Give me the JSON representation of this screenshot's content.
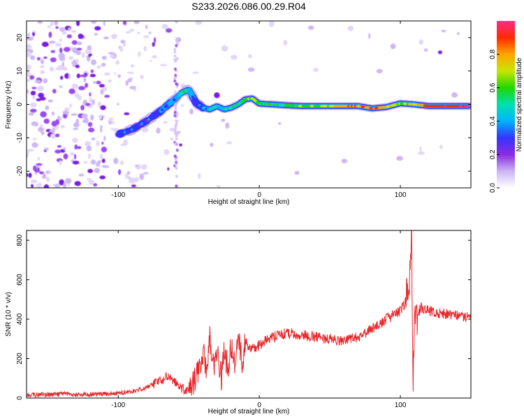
{
  "title": "S233.2026.086.00.29.R04",
  "colors": {
    "snr_line": "#e8262a",
    "axis": "#000000",
    "colormap": [
      "#ffffff",
      "#cbb5f3",
      "#8a2be2",
      "#3535ff",
      "#00b4ff",
      "#00e0b0",
      "#22d600",
      "#c8e600",
      "#ffa500",
      "#ff2a00",
      "#ff2a8a"
    ]
  },
  "chart_data": [
    {
      "type": "heatmap",
      "title": "S233.2026.086.00.29.R04",
      "xlabel": "Height of straight line (km)",
      "ylabel": "Frequency (Hz)",
      "xlim": [
        -165,
        150
      ],
      "ylim": [
        -25,
        25
      ],
      "xticks": [
        -100,
        0,
        100
      ],
      "yticks": [
        -20,
        -10,
        0,
        10,
        20
      ],
      "colorbar": {
        "label": "Normalized spectral amplitude",
        "range": [
          0,
          1
        ],
        "ticks": [
          0.0,
          0.2,
          0.4,
          0.6,
          0.8
        ]
      },
      "ridge": {
        "x": [
          -100,
          -90,
          -80,
          -70,
          -60,
          -55,
          -50,
          -45,
          -40,
          -35,
          -30,
          -25,
          -20,
          -15,
          -10,
          -5,
          0,
          10,
          20,
          30,
          40,
          50,
          60,
          70,
          80,
          90,
          100,
          110,
          120,
          130,
          140,
          148
        ],
        "freq": [
          -9,
          -7.5,
          -5,
          -2,
          1.5,
          3.5,
          4.5,
          0.5,
          -1,
          -1.5,
          -0.5,
          -1.5,
          -1,
          0,
          1.5,
          1.8,
          0.2,
          0,
          -0.3,
          -0.5,
          -0.5,
          -0.5,
          -0.5,
          -0.5,
          -1.2,
          -0.8,
          0.3,
          0,
          -0.5,
          -0.5,
          -0.5,
          -0.5
        ],
        "amplitude": [
          0.3,
          0.35,
          0.3,
          0.35,
          0.4,
          0.55,
          0.45,
          0.3,
          0.35,
          0.45,
          0.5,
          0.45,
          0.5,
          0.55,
          0.6,
          0.65,
          0.6,
          0.55,
          0.55,
          0.6,
          0.6,
          0.7,
          0.8,
          0.8,
          0.85,
          0.8,
          0.6,
          0.75,
          0.9,
          0.95,
          0.95,
          0.95
        ]
      }
    },
    {
      "type": "line",
      "xlabel": "Height of straight line (km)",
      "ylabel": "SNR (10 * v/v)",
      "xlim": [
        -165,
        150
      ],
      "ylim": [
        0,
        850
      ],
      "xticks": [
        -100,
        0,
        100
      ],
      "yticks": [
        0,
        200,
        400,
        600,
        800
      ],
      "series": [
        {
          "name": "SNR",
          "x": [
            -165,
            -140,
            -120,
            -100,
            -90,
            -80,
            -70,
            -65,
            -60,
            -55,
            -50,
            -45,
            -40,
            -37,
            -35,
            -32,
            -30,
            -27,
            -25,
            -22,
            -20,
            -17,
            -15,
            -12,
            -10,
            -5,
            0,
            10,
            20,
            30,
            40,
            50,
            60,
            70,
            80,
            90,
            100,
            104,
            106,
            107,
            108,
            109,
            110,
            112,
            115,
            120,
            130,
            140,
            150
          ],
          "y": [
            15,
            20,
            18,
            25,
            35,
            50,
            90,
            110,
            80,
            50,
            30,
            100,
            230,
            150,
            300,
            120,
            270,
            100,
            230,
            150,
            280,
            170,
            300,
            180,
            280,
            250,
            270,
            310,
            330,
            320,
            310,
            300,
            290,
            310,
            350,
            400,
            440,
            490,
            560,
            700,
            820,
            100,
            460,
            430,
            460,
            440,
            430,
            420,
            410
          ]
        }
      ]
    }
  ]
}
